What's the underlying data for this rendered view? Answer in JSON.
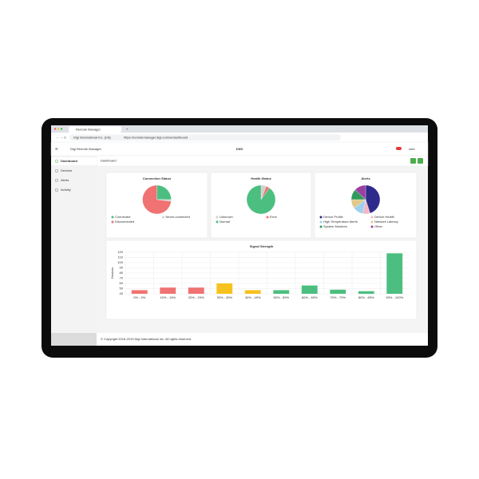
{
  "browser": {
    "tab_title": "Remote Manager",
    "site": "Digi International Inc. [US]",
    "url": "https://remotemanager.digi.com/ui/dashboard"
  },
  "header": {
    "app_name": "Digi Remote Manager",
    "logo": "DIGI",
    "user": "user"
  },
  "sidebar": {
    "items": [
      "Dashboard",
      "Devices",
      "Alerts",
      "Activity"
    ]
  },
  "breadcrumb": "Dashboard",
  "footer": "© Copyright 2016-2019 Digi International Inc. All rights reserved.",
  "chart_data": [
    {
      "type": "pie",
      "title": "Connection Status",
      "categories": [
        "Connected",
        "Never-connected",
        "Disconnected"
      ],
      "values": [
        25,
        2,
        73
      ],
      "colors": [
        "#4cbf80",
        "#cfcfcf",
        "#f07272"
      ]
    },
    {
      "type": "pie",
      "title": "Health Status",
      "categories": [
        "Unknown",
        "Error",
        "Normal"
      ],
      "values": [
        6,
        4,
        90
      ],
      "colors": [
        "#cfcfcf",
        "#f07272",
        "#4cbf80"
      ]
    },
    {
      "type": "pie",
      "title": "Alerts",
      "categories": [
        "Device Profile",
        "Device Health",
        "High Temperature Alerts",
        "Network Latency",
        "System Monitors",
        "Other"
      ],
      "values": [
        45,
        8,
        12,
        10,
        12,
        13
      ],
      "colors": [
        "#2e2a8c",
        "#f4b6c2",
        "#9fd0f0",
        "#e0c98a",
        "#2f9a5c",
        "#9b3fa0"
      ]
    },
    {
      "type": "bar",
      "title": "Signal Strength",
      "y_label": "Devices",
      "categories": [
        "0% - 9%",
        "10% - 19%",
        "20% - 29%",
        "30% - 39%",
        "40% - 49%",
        "50% - 59%",
        "60% - 69%",
        "70% - 79%",
        "80% - 89%",
        "90% - 100%"
      ],
      "values": [
        47,
        52,
        52,
        60,
        47,
        47,
        56,
        48,
        45,
        118
      ],
      "colors": [
        "#f07272",
        "#f07272",
        "#f07272",
        "#f7c21e",
        "#f7c21e",
        "#4cbf80",
        "#4cbf80",
        "#4cbf80",
        "#4cbf80",
        "#4cbf80"
      ],
      "ylim": [
        40,
        120
      ],
      "yticks": [
        40,
        50,
        60,
        70,
        80,
        90,
        100,
        110,
        120
      ],
      "grid": true
    }
  ]
}
